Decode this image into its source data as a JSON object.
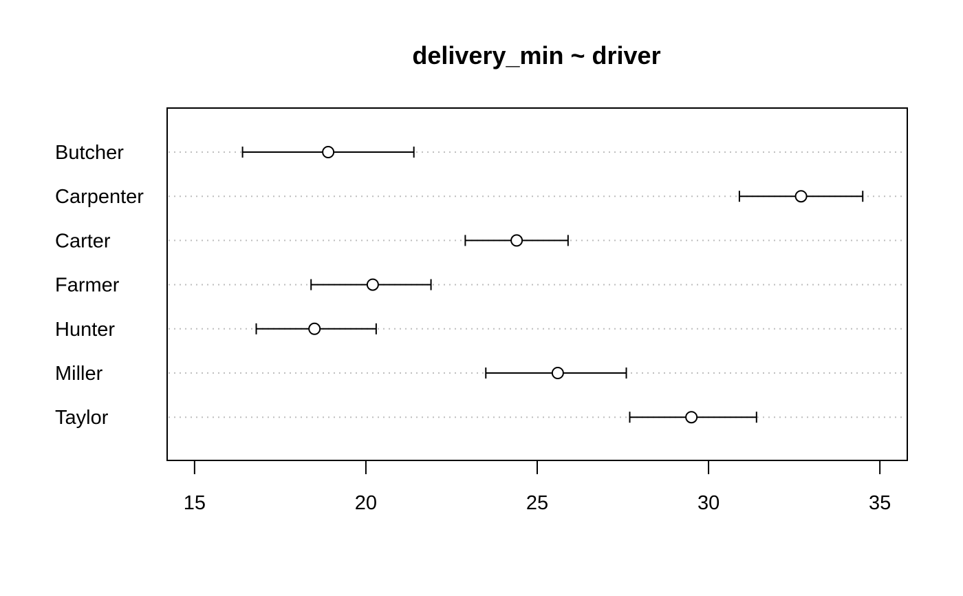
{
  "chart_data": {
    "type": "dotplot-interval",
    "title": "delivery_min ~ driver",
    "xlabel": "",
    "ylabel": "",
    "xlim": [
      14.2,
      35.8
    ],
    "x_ticks": [
      15,
      20,
      25,
      30,
      35
    ],
    "grid": "dotted horizontal guide per category",
    "categories": [
      "Butcher",
      "Carpenter",
      "Carter",
      "Farmer",
      "Hunter",
      "Miller",
      "Taylor"
    ],
    "series": [
      {
        "estimate": [
          18.9,
          32.7,
          24.4,
          20.2,
          18.5,
          25.6,
          29.5
        ],
        "lower": [
          16.4,
          30.9,
          22.9,
          18.4,
          16.8,
          23.5,
          27.7
        ],
        "upper": [
          21.4,
          34.5,
          25.9,
          21.9,
          20.3,
          27.6,
          31.4
        ]
      }
    ],
    "colors": {
      "foreground": "#000000",
      "grid": "#bebebe",
      "background": "#ffffff"
    }
  }
}
